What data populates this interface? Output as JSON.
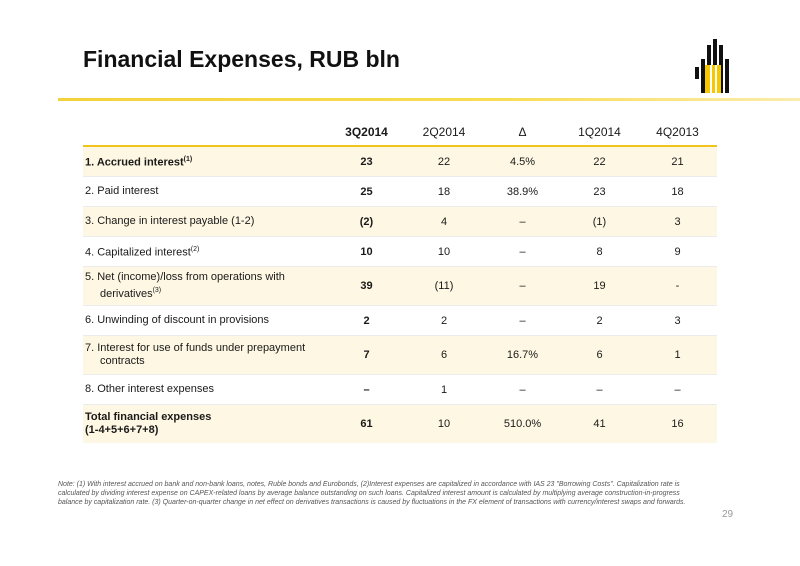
{
  "title": "Financial Expenses, RUB bln",
  "accent_color": "#f0c419",
  "logo_icon": "company-logo",
  "table": {
    "columns": [
      "3Q2014",
      "2Q2014",
      "Δ",
      "1Q2014",
      "4Q2013"
    ],
    "rows": [
      {
        "label": "1. Accrued interest",
        "sup": "(1)",
        "label_bold": true,
        "cells": [
          "23",
          "22",
          "4.5%",
          "22",
          "21"
        ]
      },
      {
        "label": "2. Paid interest",
        "sup": "",
        "label_bold": false,
        "cells": [
          "25",
          "18",
          "38.9%",
          "23",
          "18"
        ]
      },
      {
        "label": "3. Change in interest payable (1-2)",
        "sup": "",
        "label_bold": false,
        "cells": [
          "(2)",
          "4",
          "–",
          "(1)",
          "3"
        ]
      },
      {
        "label": "4. Capitalized interest",
        "sup": "(2)",
        "label_bold": false,
        "cells": [
          "10",
          "10",
          "–",
          "8",
          "9"
        ]
      },
      {
        "label": "5. Net (income)/loss from operations with",
        "label2": "derivatives",
        "sup": "(3)",
        "label_bold": false,
        "cells": [
          "39",
          "(11)",
          "–",
          "19",
          "-"
        ]
      },
      {
        "label": "6. Unwinding of discount in provisions",
        "sup": "",
        "label_bold": false,
        "cells": [
          "2",
          "2",
          "–",
          "2",
          "3"
        ]
      },
      {
        "label": "7. Interest for use of funds under prepayment",
        "label2": "contracts",
        "sup": "",
        "label_bold": false,
        "cells": [
          "7",
          "6",
          "16.7%",
          "6",
          "1"
        ]
      },
      {
        "label": "8. Other interest expenses",
        "sup": "",
        "label_bold": false,
        "cells": [
          "–",
          "1",
          "–",
          "–",
          "–"
        ]
      },
      {
        "label": "Total financial expenses",
        "label2": "(1-4+5+6+7+8)",
        "sup": "",
        "label_bold": true,
        "cells": [
          "61",
          "10",
          "510.0%",
          "41",
          "16"
        ]
      }
    ]
  },
  "note": "Note: (1) With interest accrued on bank and non-bank loans, notes, Ruble bonds and Eurobonds, (2)Interest expenses are capitalized in accordance with IAS 23 \"Borrowing Costs\". Capitalization rate is calculated by dividing interest expense on CAPEX-related loans by average balance outstanding on such loans. Capitalized interest amount is calculated by multiplying average construction-in-progress balance by capitalization rate. (3) Quarter-on-quarter change in net effect on derivatives transactions is caused by fluctuations in the FX element of transactions with currency/interest swaps and forwards.",
  "page_number": "29"
}
